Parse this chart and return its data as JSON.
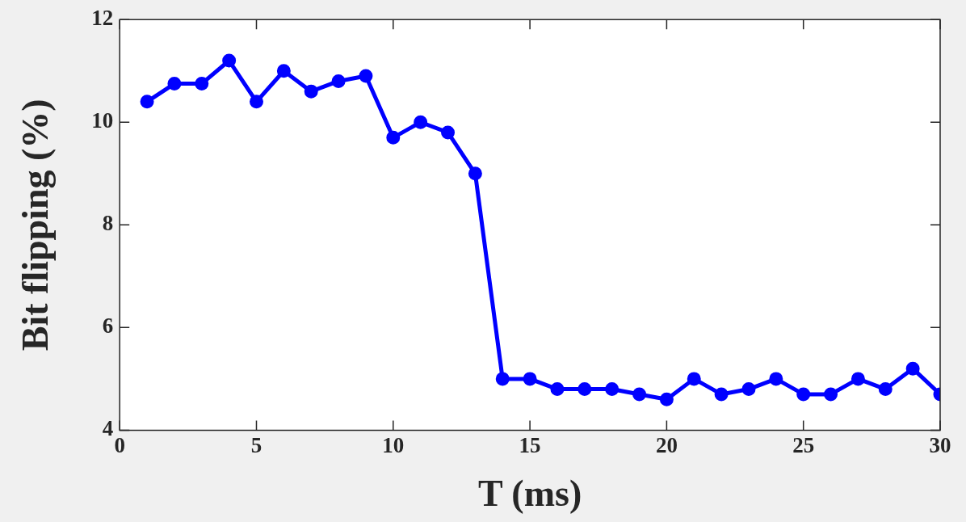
{
  "chart_data": {
    "type": "line",
    "xlabel": "T (ms)",
    "ylabel": "Bit flipping (%)",
    "x": [
      1,
      2,
      3,
      4,
      5,
      6,
      7,
      8,
      9,
      10,
      11,
      12,
      13,
      14,
      15,
      16,
      17,
      18,
      19,
      20,
      21,
      22,
      23,
      24,
      25,
      26,
      27,
      28,
      29,
      30
    ],
    "series": [
      {
        "color": "#0000ff",
        "values": [
          10.4,
          10.75,
          10.75,
          11.2,
          10.4,
          11.0,
          10.6,
          10.8,
          10.9,
          9.7,
          10.0,
          9.8,
          9.0,
          5.0,
          5.0,
          4.8,
          4.8,
          4.8,
          4.7,
          4.6,
          5.0,
          4.7,
          4.8,
          5.0,
          4.7,
          4.7,
          5.0,
          4.8,
          5.2,
          4.7
        ]
      }
    ],
    "xlim": [
      0,
      30
    ],
    "xticks": [
      0,
      5,
      10,
      15,
      20,
      25,
      30
    ],
    "ylim": [
      4,
      12
    ],
    "yticks": [
      4,
      6,
      8,
      10,
      12
    ],
    "grid": false,
    "legend": false,
    "marker": "circle",
    "line_style": "solid"
  }
}
